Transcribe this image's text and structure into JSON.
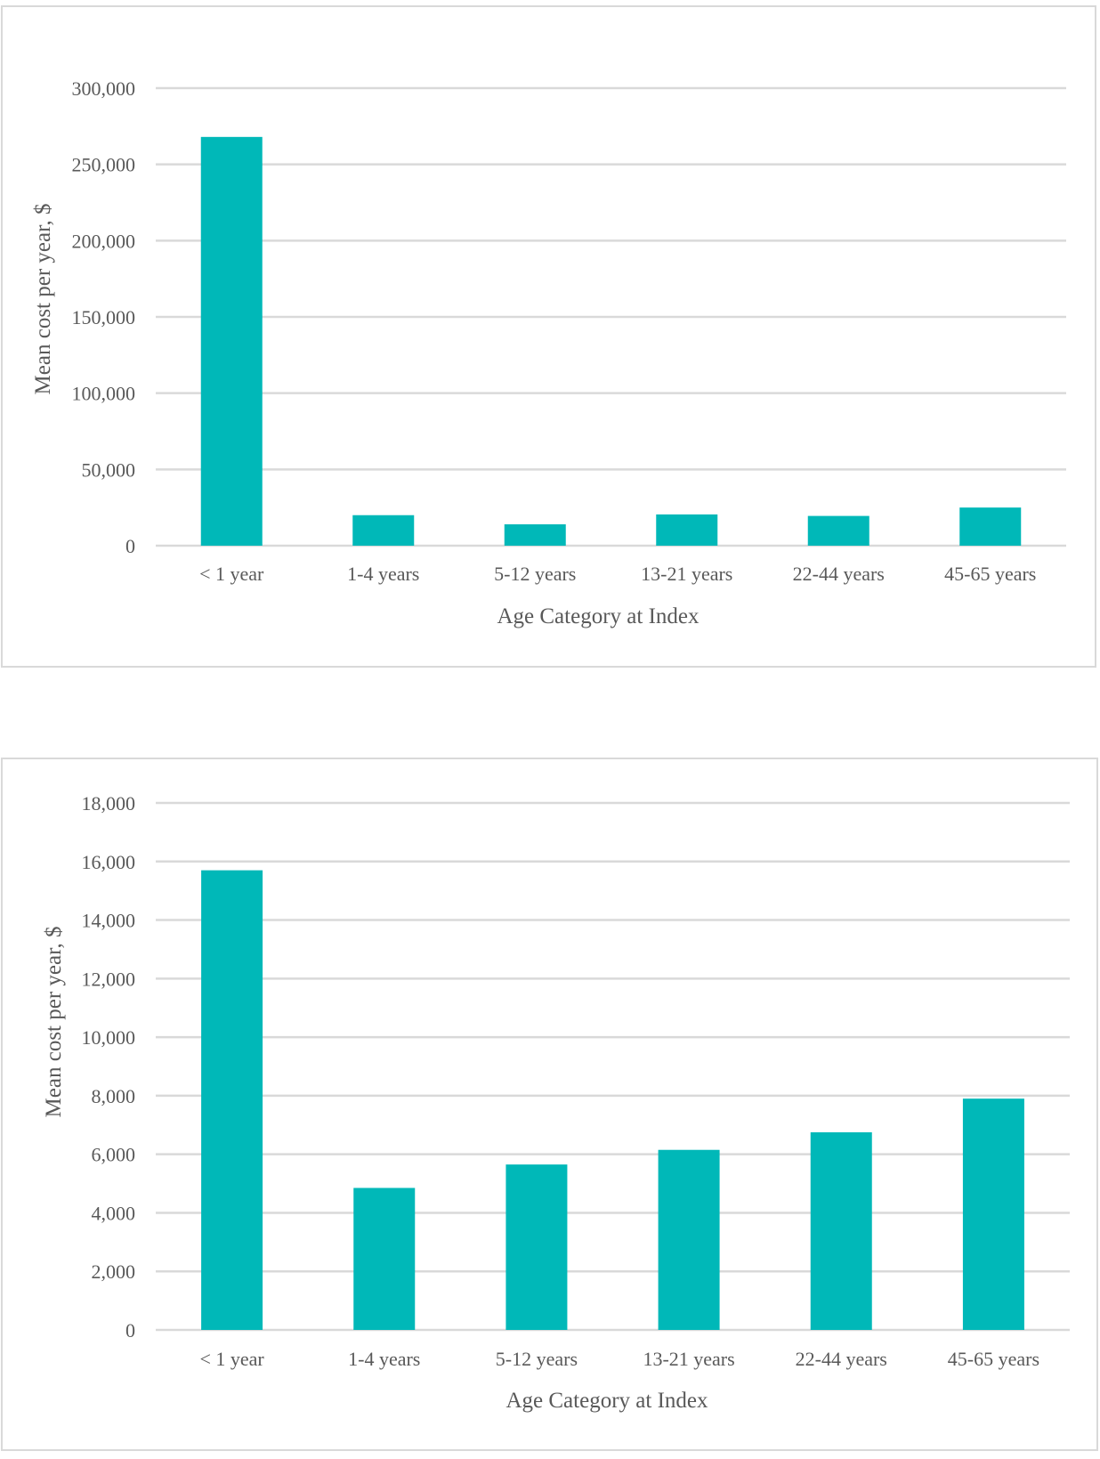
{
  "chart_data": [
    {
      "type": "bar",
      "categories": [
        "< 1 year",
        "1-4 years",
        "5-12 years",
        "13-21 years",
        "22-44 years",
        "45-65 years"
      ],
      "values": [
        268000,
        20000,
        14000,
        20500,
        19500,
        25000
      ],
      "ylabel": "Mean cost per year, $",
      "xlabel": "Age Category at Index",
      "ylim": [
        0,
        300000
      ],
      "yticks": [
        0,
        50000,
        100000,
        150000,
        200000,
        250000,
        300000
      ],
      "ytick_labels": [
        "0",
        "50,000",
        "100,000",
        "150,000",
        "200,000",
        "250,000",
        "300,000"
      ],
      "grid": true,
      "bar_color": "#00b8b8"
    },
    {
      "type": "bar",
      "categories": [
        "< 1 year",
        "1-4 years",
        "5-12 years",
        "13-21 years",
        "22-44 years",
        "45-65 years"
      ],
      "values": [
        15700,
        4850,
        5650,
        6150,
        6750,
        7900
      ],
      "ylabel": "Mean cost per year, $",
      "xlabel": "Age Category at Index",
      "ylim": [
        0,
        18000
      ],
      "yticks": [
        0,
        2000,
        4000,
        6000,
        8000,
        10000,
        12000,
        14000,
        16000,
        18000
      ],
      "ytick_labels": [
        "0",
        "2,000",
        "4,000",
        "6,000",
        "8,000",
        "10,000",
        "12,000",
        "14,000",
        "16,000",
        "18,000"
      ],
      "grid": true,
      "bar_color": "#00b8b8"
    }
  ]
}
